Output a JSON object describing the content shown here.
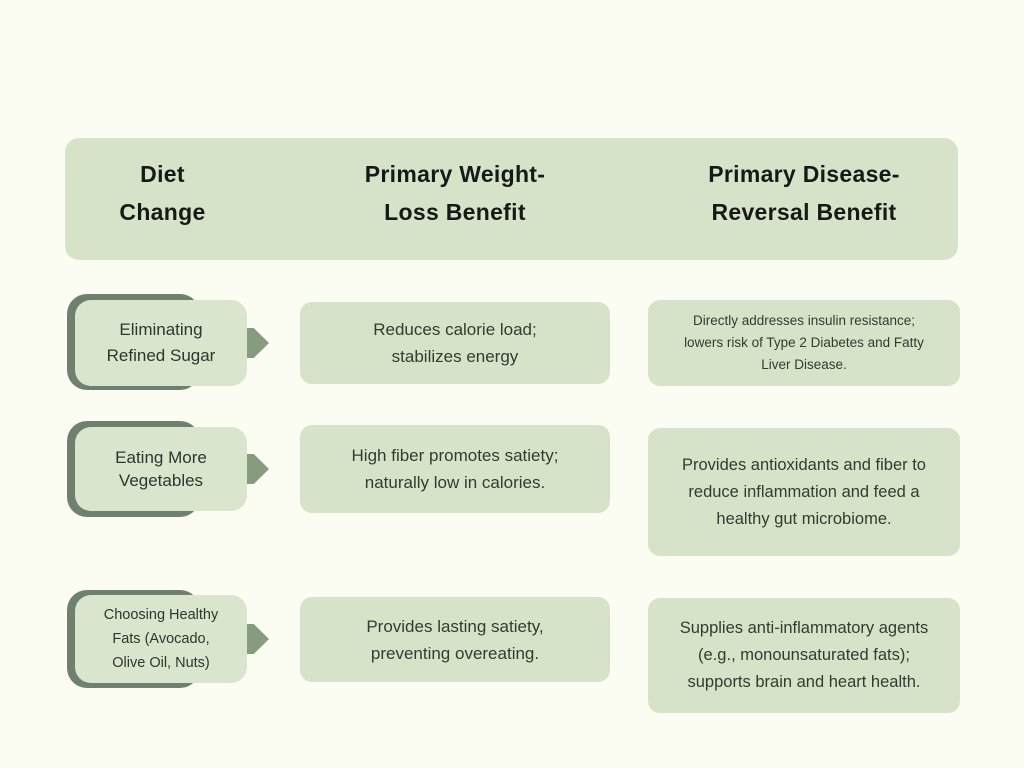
{
  "title": "Diet change comparison table",
  "colors": {
    "background": "#fbfdf2",
    "cell_green": "#d7e3c9",
    "pill_green": "#d9e5cd",
    "shadow_green": "#6e8170",
    "arrow_green": "#879b7e",
    "header_text": "#161a16",
    "body_text": "#333b31"
  },
  "header": {
    "columns": [
      {
        "label": "Diet\nChange"
      },
      {
        "label": "Primary Weight-\nLoss Benefit"
      },
      {
        "label": "Primary Disease-\nReversal Benefit"
      }
    ]
  },
  "rows": [
    {
      "diet_change": "Eliminating\nRefined Sugar",
      "weight_loss_benefit": "Reduces calorie load;\nstabilizes energy",
      "disease_reversal_benefit": "Directly addresses insulin resistance;\nlowers risk of Type 2 Diabetes and Fatty\nLiver Disease."
    },
    {
      "diet_change": "Eating More\nVegetables",
      "weight_loss_benefit": "High fiber promotes satiety;\nnaturally low in calories.",
      "disease_reversal_benefit": "Provides antioxidants and fiber to\nreduce inflammation and feed a\nhealthy gut microbiome."
    },
    {
      "diet_change": "Choosing Healthy\nFats (Avocado,\nOlive Oil, Nuts)",
      "weight_loss_benefit": "Provides lasting satiety,\npreventing overeating.",
      "disease_reversal_benefit": "Supplies anti-inflammatory agents\n(e.g., monounsaturated fats);\nsupports brain and heart health."
    }
  ]
}
